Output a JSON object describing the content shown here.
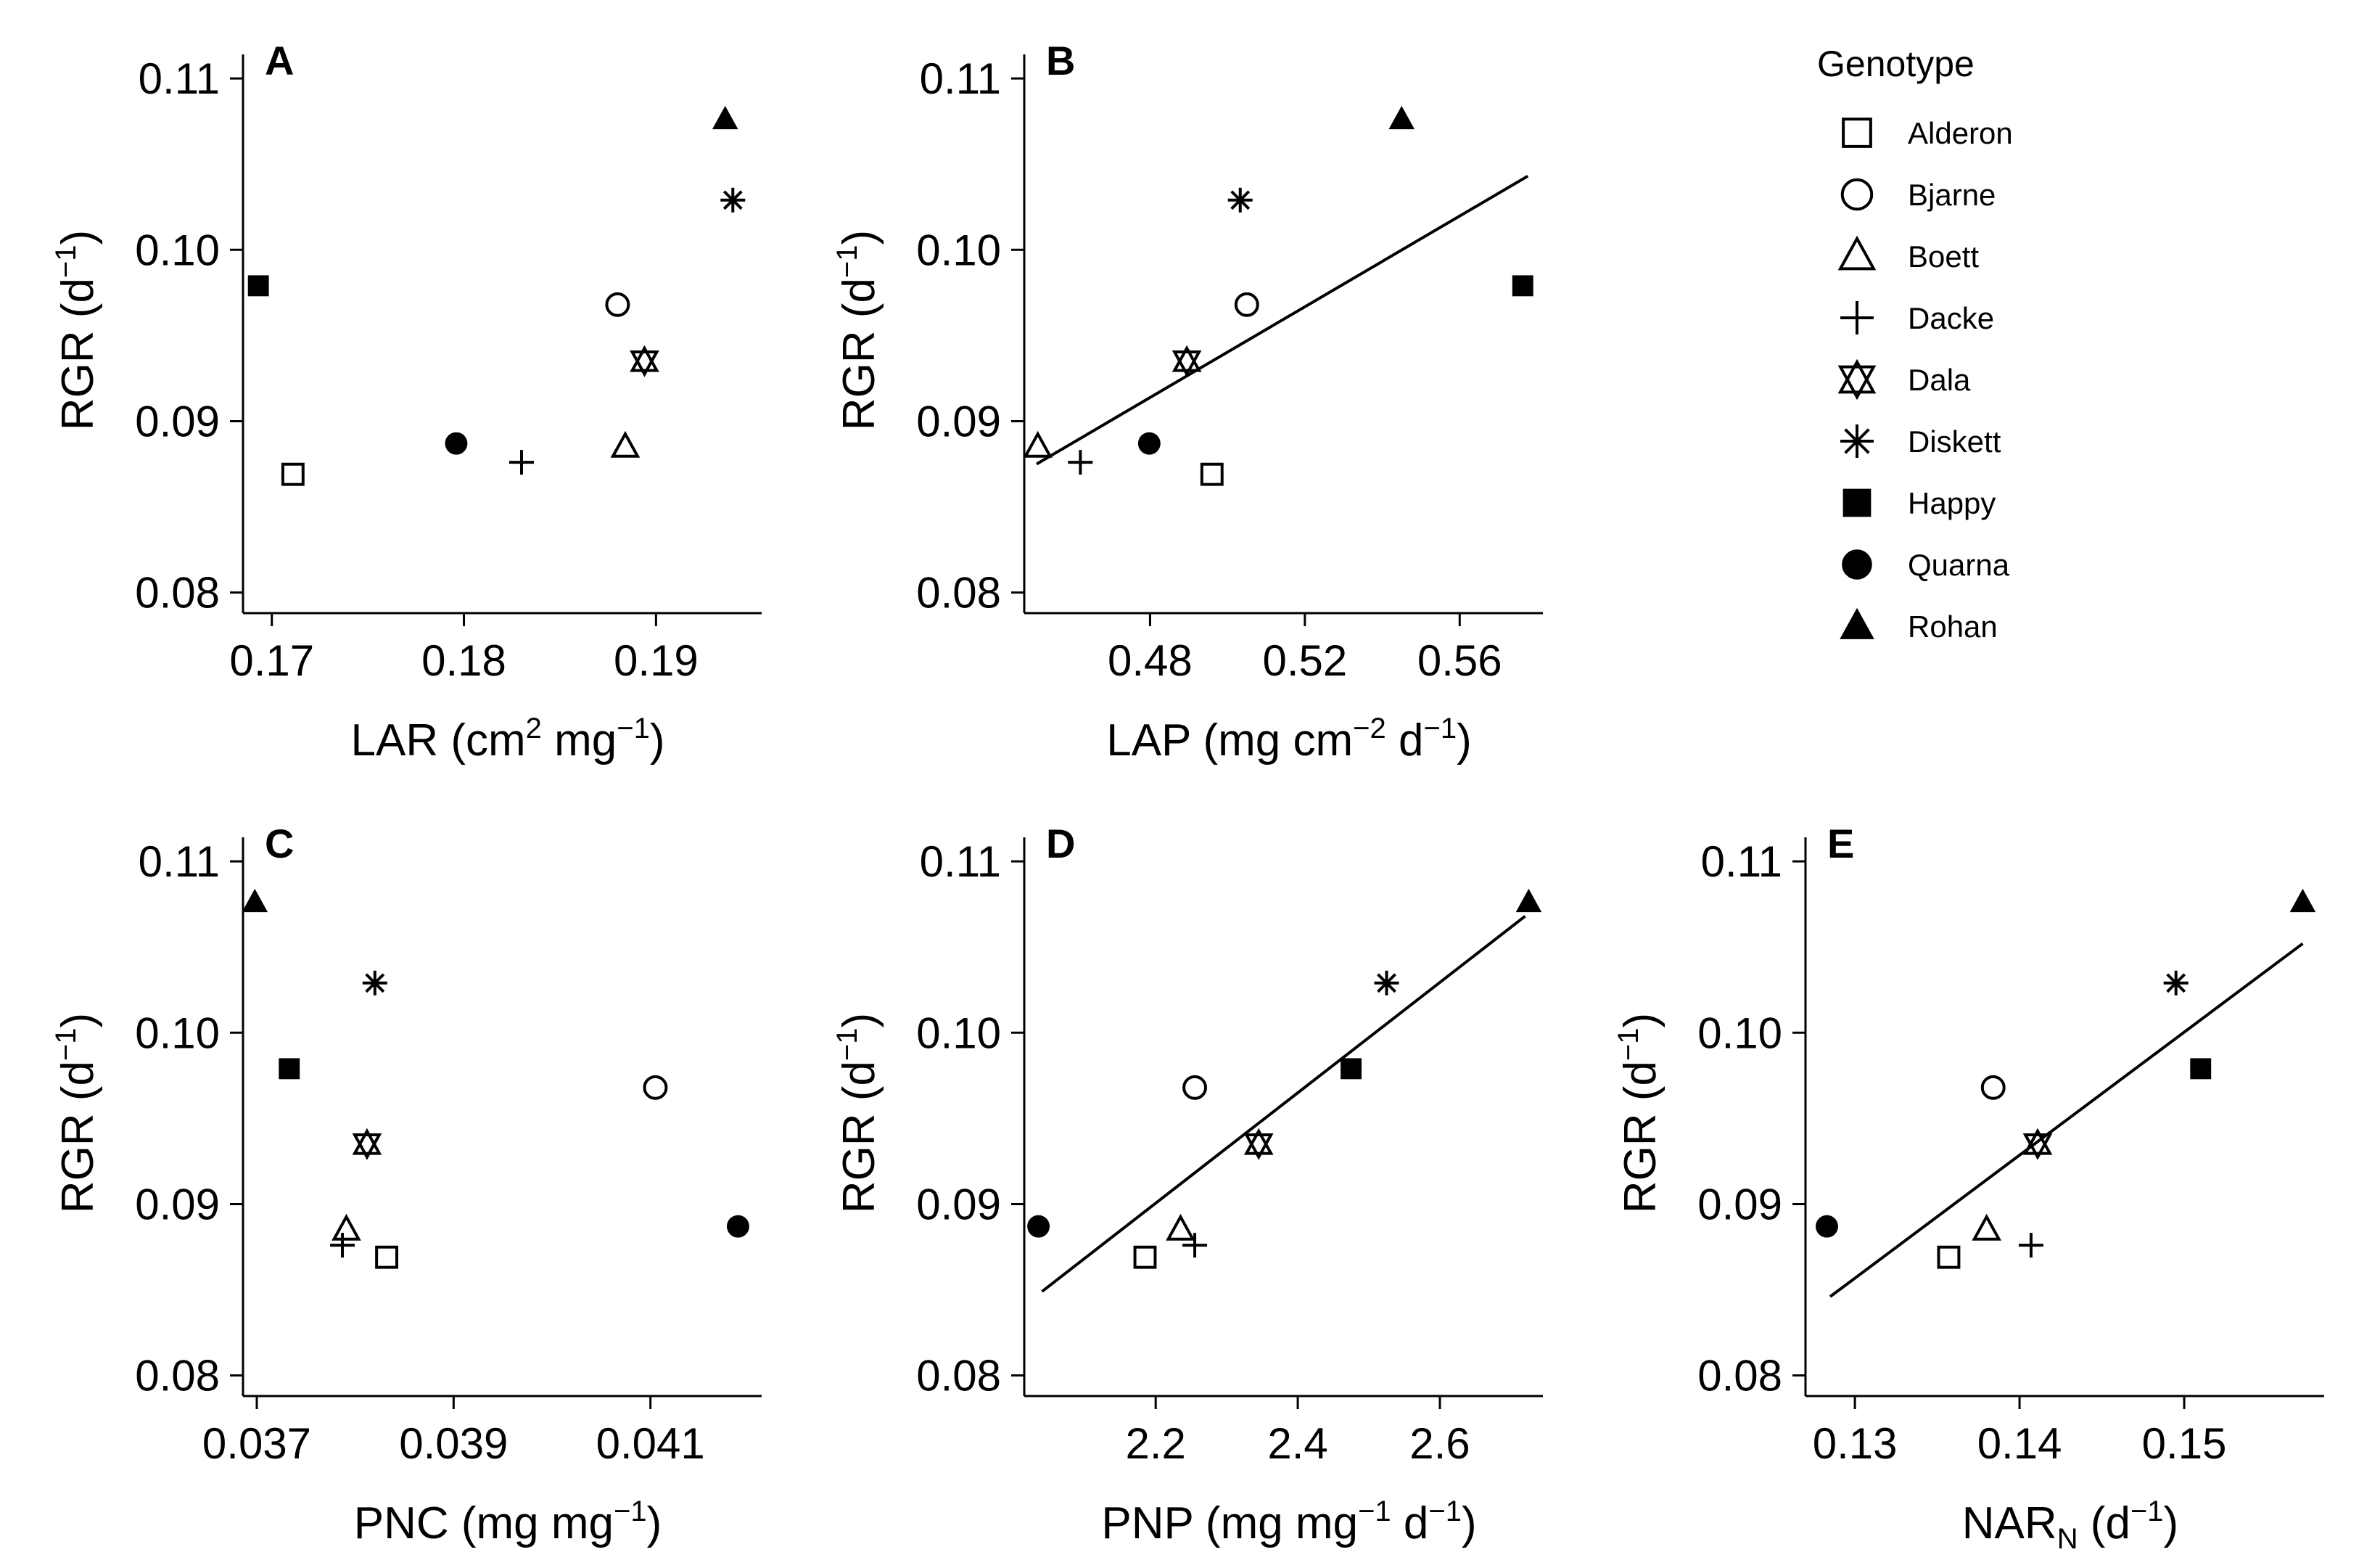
{
  "legend": {
    "title": "Genotype",
    "items": [
      {
        "name": "Alderon",
        "marker": "open-square"
      },
      {
        "name": "Bjarne",
        "marker": "open-circle"
      },
      {
        "name": "Boett",
        "marker": "open-triangle"
      },
      {
        "name": "Dacke",
        "marker": "plus"
      },
      {
        "name": "Dala",
        "marker": "open-star-of-david"
      },
      {
        "name": "Diskett",
        "marker": "asterisk"
      },
      {
        "name": "Happy",
        "marker": "filled-square"
      },
      {
        "name": "Quarna",
        "marker": "filled-circle"
      },
      {
        "name": "Rohan",
        "marker": "filled-triangle"
      }
    ]
  },
  "chart_data": [
    {
      "type": "scatter",
      "panel": "A",
      "xlabel": "LAR (cm² mg⁻¹)",
      "ylabel": "RGR (d⁻¹)",
      "xlim": [
        0.1685,
        0.1955
      ],
      "ylim": [
        0.0788,
        0.1114
      ],
      "xticks": [
        0.17,
        0.18,
        0.19
      ],
      "xtick_labels": [
        "0.17",
        "0.18",
        "0.19"
      ],
      "yticks": [
        0.08,
        0.09,
        0.1,
        0.11
      ],
      "ytick_labels": [
        "0.08",
        "0.09",
        "0.10",
        "0.11"
      ],
      "trend_line": null,
      "points": [
        {
          "genotype": "Alderon",
          "x": 0.1711,
          "y": 0.0869
        },
        {
          "genotype": "Bjarne",
          "x": 0.188,
          "y": 0.0968
        },
        {
          "genotype": "Boett",
          "x": 0.1884,
          "y": 0.0885
        },
        {
          "genotype": "Dacke",
          "x": 0.183,
          "y": 0.0876
        },
        {
          "genotype": "Dala",
          "x": 0.1894,
          "y": 0.0935
        },
        {
          "genotype": "Diskett",
          "x": 0.194,
          "y": 0.1029
        },
        {
          "genotype": "Happy",
          "x": 0.1693,
          "y": 0.0979
        },
        {
          "genotype": "Quarna",
          "x": 0.1796,
          "y": 0.0887
        },
        {
          "genotype": "Rohan",
          "x": 0.1936,
          "y": 0.1076
        }
      ]
    },
    {
      "type": "scatter",
      "panel": "B",
      "xlabel": "LAP (mg cm⁻² d⁻¹)",
      "ylabel": "RGR (d⁻¹)",
      "xlim": [
        0.4475,
        0.5815
      ],
      "ylim": [
        0.0788,
        0.1114
      ],
      "xticks": [
        0.48,
        0.52,
        0.56
      ],
      "xtick_labels": [
        "0.48",
        "0.52",
        "0.56"
      ],
      "yticks": [
        0.08,
        0.09,
        0.1,
        0.11
      ],
      "ytick_labels": [
        "0.08",
        "0.09",
        "0.10",
        "0.11"
      ],
      "trend_line": {
        "x": [
          0.4507,
          0.5776
        ],
        "y": [
          0.0875,
          0.1043
        ]
      },
      "points": [
        {
          "genotype": "Alderon",
          "x": 0.496,
          "y": 0.0869
        },
        {
          "genotype": "Bjarne",
          "x": 0.505,
          "y": 0.0968
        },
        {
          "genotype": "Boett",
          "x": 0.451,
          "y": 0.0885
        },
        {
          "genotype": "Dacke",
          "x": 0.462,
          "y": 0.0876
        },
        {
          "genotype": "Dala",
          "x": 0.4895,
          "y": 0.0935
        },
        {
          "genotype": "Diskett",
          "x": 0.5033,
          "y": 0.1029
        },
        {
          "genotype": "Happy",
          "x": 0.5763,
          "y": 0.0979
        },
        {
          "genotype": "Quarna",
          "x": 0.4798,
          "y": 0.0887
        },
        {
          "genotype": "Rohan",
          "x": 0.545,
          "y": 0.1076
        }
      ]
    },
    {
      "type": "scatter",
      "panel": "C",
      "xlabel": "PNC (mg mg⁻¹)",
      "ylabel": "RGR (d⁻¹)",
      "xlim": [
        0.03686,
        0.04213
      ],
      "ylim": [
        0.0788,
        0.1114
      ],
      "xticks": [
        0.037,
        0.039,
        0.041
      ],
      "xtick_labels": [
        "0.037",
        "0.039",
        "0.041"
      ],
      "yticks": [
        0.08,
        0.09,
        0.1,
        0.11
      ],
      "ytick_labels": [
        "0.08",
        "0.09",
        "0.10",
        "0.11"
      ],
      "trend_line": null,
      "points": [
        {
          "genotype": "Alderon",
          "x": 0.03832,
          "y": 0.0869
        },
        {
          "genotype": "Bjarne",
          "x": 0.04105,
          "y": 0.0968
        },
        {
          "genotype": "Boett",
          "x": 0.03791,
          "y": 0.0885
        },
        {
          "genotype": "Dacke",
          "x": 0.03787,
          "y": 0.0876
        },
        {
          "genotype": "Dala",
          "x": 0.03812,
          "y": 0.0935
        },
        {
          "genotype": "Diskett",
          "x": 0.0382,
          "y": 0.1029
        },
        {
          "genotype": "Happy",
          "x": 0.03733,
          "y": 0.0979
        },
        {
          "genotype": "Quarna",
          "x": 0.04189,
          "y": 0.0887
        },
        {
          "genotype": "Rohan",
          "x": 0.03698,
          "y": 0.1076
        }
      ]
    },
    {
      "type": "scatter",
      "panel": "D",
      "xlabel": "PNP (mg mg⁻¹ d⁻¹)",
      "ylabel": "RGR (d⁻¹)",
      "xlim": [
        2.015,
        2.745
      ],
      "ylim": [
        0.0788,
        0.1114
      ],
      "xticks": [
        2.2,
        2.4,
        2.6
      ],
      "xtick_labels": [
        "2.2",
        "2.4",
        "2.6"
      ],
      "yticks": [
        0.08,
        0.09,
        0.1,
        0.11
      ],
      "ytick_labels": [
        "0.08",
        "0.09",
        "0.10",
        "0.11"
      ],
      "trend_line": {
        "x": [
          2.04,
          2.72
        ],
        "y": [
          0.0849,
          0.1068
        ]
      },
      "points": [
        {
          "genotype": "Alderon",
          "x": 2.185,
          "y": 0.0869
        },
        {
          "genotype": "Bjarne",
          "x": 2.255,
          "y": 0.0968
        },
        {
          "genotype": "Boett",
          "x": 2.235,
          "y": 0.0885
        },
        {
          "genotype": "Dacke",
          "x": 2.255,
          "y": 0.0876
        },
        {
          "genotype": "Dala",
          "x": 2.345,
          "y": 0.0935
        },
        {
          "genotype": "Diskett",
          "x": 2.525,
          "y": 0.1029
        },
        {
          "genotype": "Happy",
          "x": 2.475,
          "y": 0.0979
        },
        {
          "genotype": "Quarna",
          "x": 2.035,
          "y": 0.0887
        },
        {
          "genotype": "Rohan",
          "x": 2.725,
          "y": 0.1076
        }
      ]
    },
    {
      "type": "scatter",
      "panel": "E",
      "xlabel": "NARN (d⁻¹)",
      "ylabel": "RGR (d⁻¹)",
      "xlim": [
        0.127,
        0.1585
      ],
      "ylim": [
        0.0788,
        0.1114
      ],
      "xticks": [
        0.13,
        0.14,
        0.15
      ],
      "xtick_labels": [
        "0.13",
        "0.14",
        "0.15"
      ],
      "yticks": [
        0.08,
        0.09,
        0.1,
        0.11
      ],
      "ytick_labels": [
        "0.08",
        "0.09",
        "0.10",
        "0.11"
      ],
      "trend_line": {
        "x": [
          0.1285,
          0.1572
        ],
        "y": [
          0.0846,
          0.1052
        ]
      },
      "points": [
        {
          "genotype": "Alderon",
          "x": 0.1357,
          "y": 0.0869
        },
        {
          "genotype": "Bjarne",
          "x": 0.1384,
          "y": 0.0968
        },
        {
          "genotype": "Boett",
          "x": 0.138,
          "y": 0.0885
        },
        {
          "genotype": "Dacke",
          "x": 0.1407,
          "y": 0.0876
        },
        {
          "genotype": "Dala",
          "x": 0.1411,
          "y": 0.0935
        },
        {
          "genotype": "Diskett",
          "x": 0.1495,
          "y": 0.1029
        },
        {
          "genotype": "Happy",
          "x": 0.151,
          "y": 0.0979
        },
        {
          "genotype": "Quarna",
          "x": 0.1283,
          "y": 0.0887
        },
        {
          "genotype": "Rohan",
          "x": 0.1572,
          "y": 0.1076
        }
      ]
    }
  ]
}
